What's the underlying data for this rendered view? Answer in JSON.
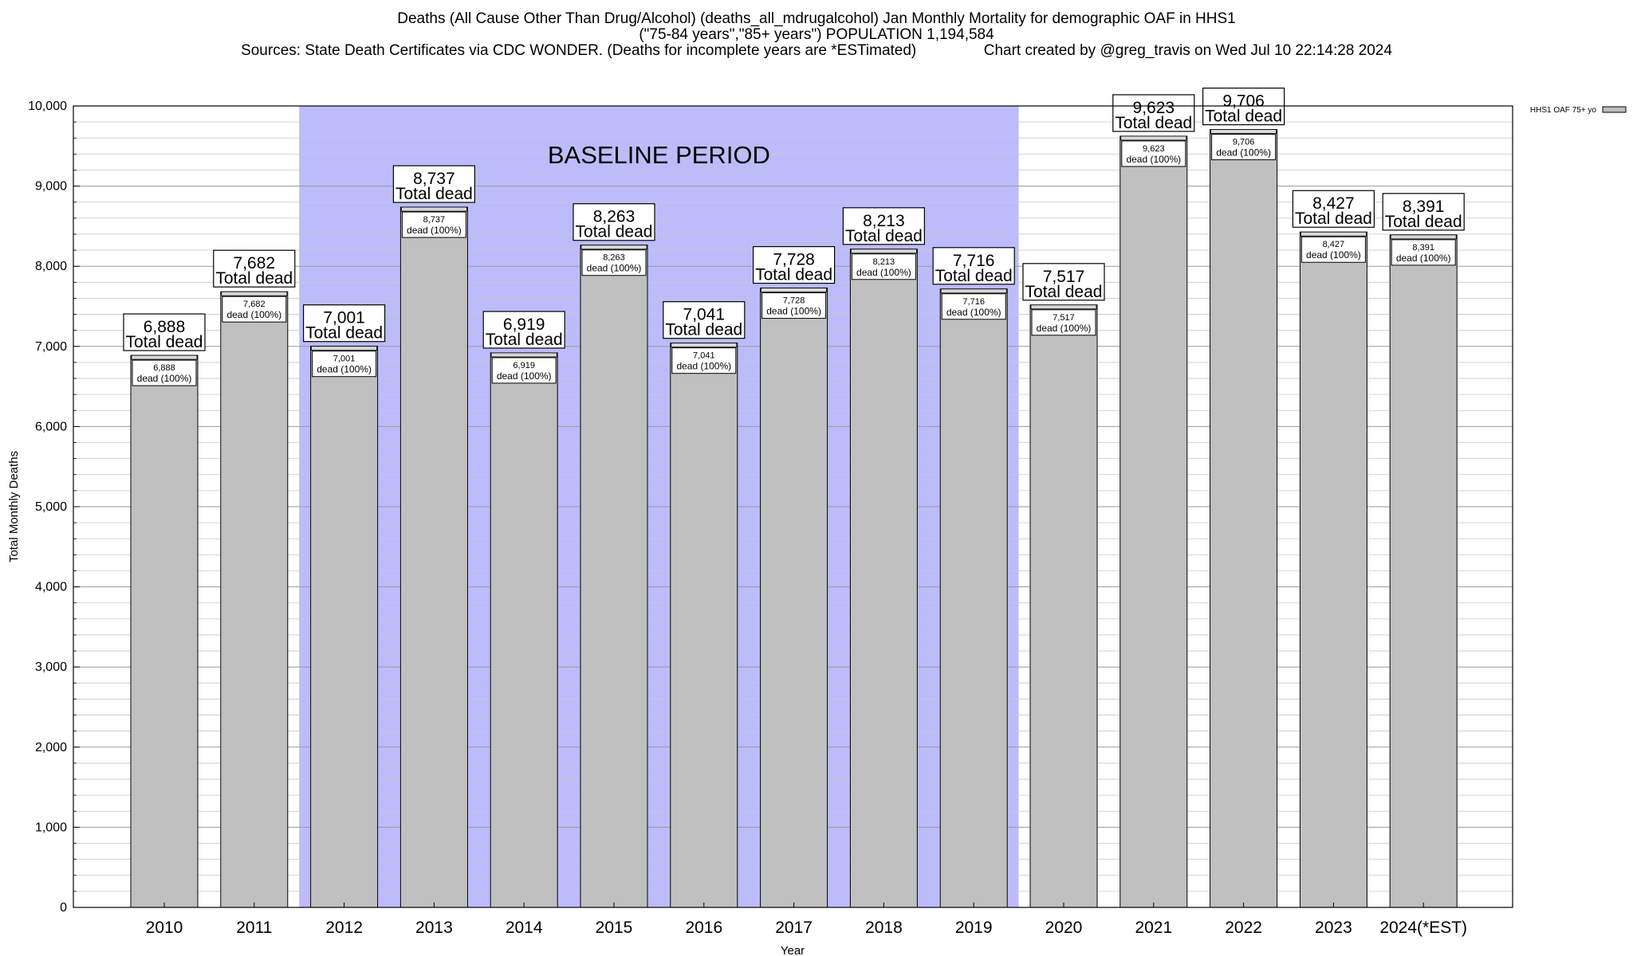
{
  "chart_data": {
    "type": "bar",
    "title_lines": [
      "Deaths (All Cause Other Than Drug/Alcohol) (deaths_all_mdrugalcohol) Jan Monthly Mortality for demographic OAF in HHS1",
      "(\"75-84 years\",\"85+ years\") POPULATION 1,194,584",
      "Sources: State Death Certificates via CDC WONDER. (Deaths for incomplete years are *ESTimated)                Chart created by @greg_travis on Wed Jul 10 22:14:28 2024"
    ],
    "xlabel": "Year",
    "ylabel": "Total Monthly Deaths",
    "ylim": [
      0,
      10000
    ],
    "ytick_labels": [
      "0",
      "1,000",
      "2,000",
      "3,000",
      "4,000",
      "5,000",
      "6,000",
      "7,000",
      "8,000",
      "9,000",
      "10,000"
    ],
    "grid": true,
    "legend": {
      "label": "HHS1 OAF 75+ yo",
      "placement": "top-right",
      "color": "#c0c0c0"
    },
    "baseline_region": {
      "label": "BASELINE PERIOD",
      "from": "2012",
      "to": "2019",
      "color": "#bcbcfc"
    },
    "bar_color": "#c0c0c0",
    "total_label": "Total dead",
    "inner_label_suffix": "dead (100%)",
    "categories": [
      "2010",
      "2011",
      "2012",
      "2013",
      "2014",
      "2015",
      "2016",
      "2017",
      "2018",
      "2019",
      "2020",
      "2021",
      "2022",
      "2023",
      "2024(*EST)"
    ],
    "values": [
      6888,
      7682,
      7001,
      8737,
      6919,
      8263,
      7041,
      7728,
      8213,
      7716,
      7517,
      9623,
      9706,
      8427,
      8391
    ],
    "value_labels": [
      "6,888",
      "7,682",
      "7,001",
      "8,737",
      "6,919",
      "8,263",
      "7,041",
      "7,728",
      "8,213",
      "7,716",
      "7,517",
      "9,623",
      "9,706",
      "8,427",
      "8,391"
    ]
  }
}
